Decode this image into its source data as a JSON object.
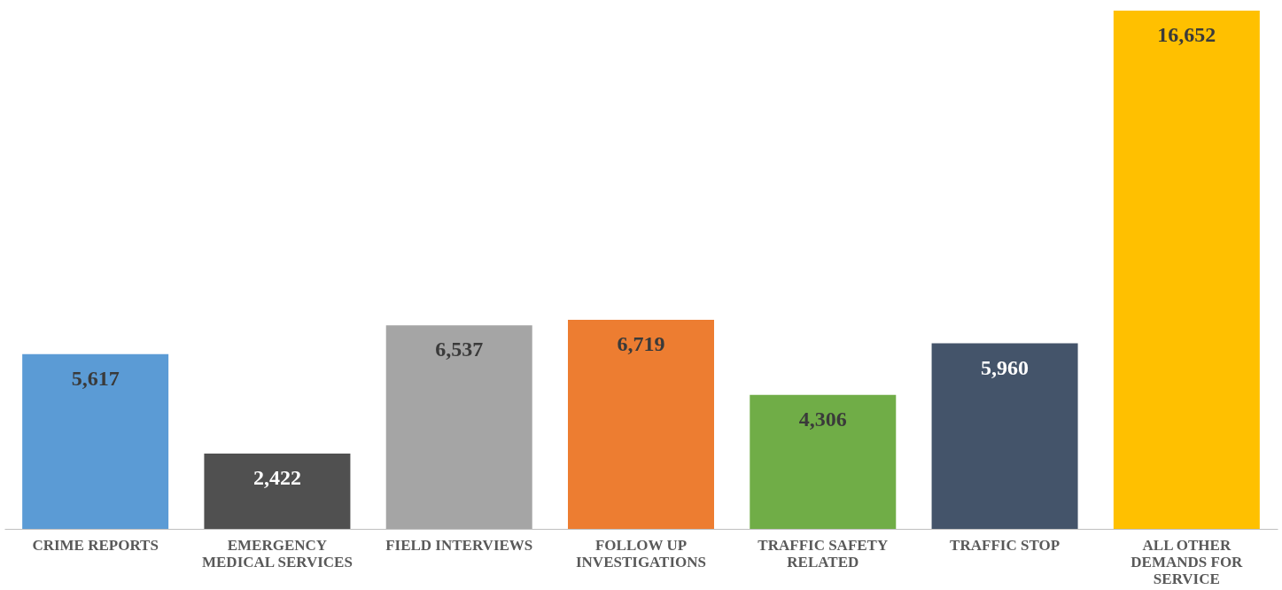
{
  "chart_data": {
    "type": "bar",
    "categories": [
      "CRIME REPORTS",
      "EMERGENCY MEDICAL SERVICES",
      "FIELD INTERVIEWS",
      "FOLLOW UP INVESTIGATIONS",
      "TRAFFIC SAFETY RELATED",
      "TRAFFIC STOP",
      "ALL OTHER DEMANDS FOR SERVICE"
    ],
    "values": [
      5617,
      2422,
      6537,
      6719,
      4306,
      5960,
      16652
    ],
    "colors": [
      "#5b9bd5",
      "#505050",
      "#a5a5a5",
      "#ed7d31",
      "#70ad47",
      "#44546a",
      "#ffc000"
    ],
    "value_labels": [
      "5,617",
      "2,422",
      "6,537",
      "6,719",
      "4,306",
      "5,960",
      "16,652"
    ]
  }
}
